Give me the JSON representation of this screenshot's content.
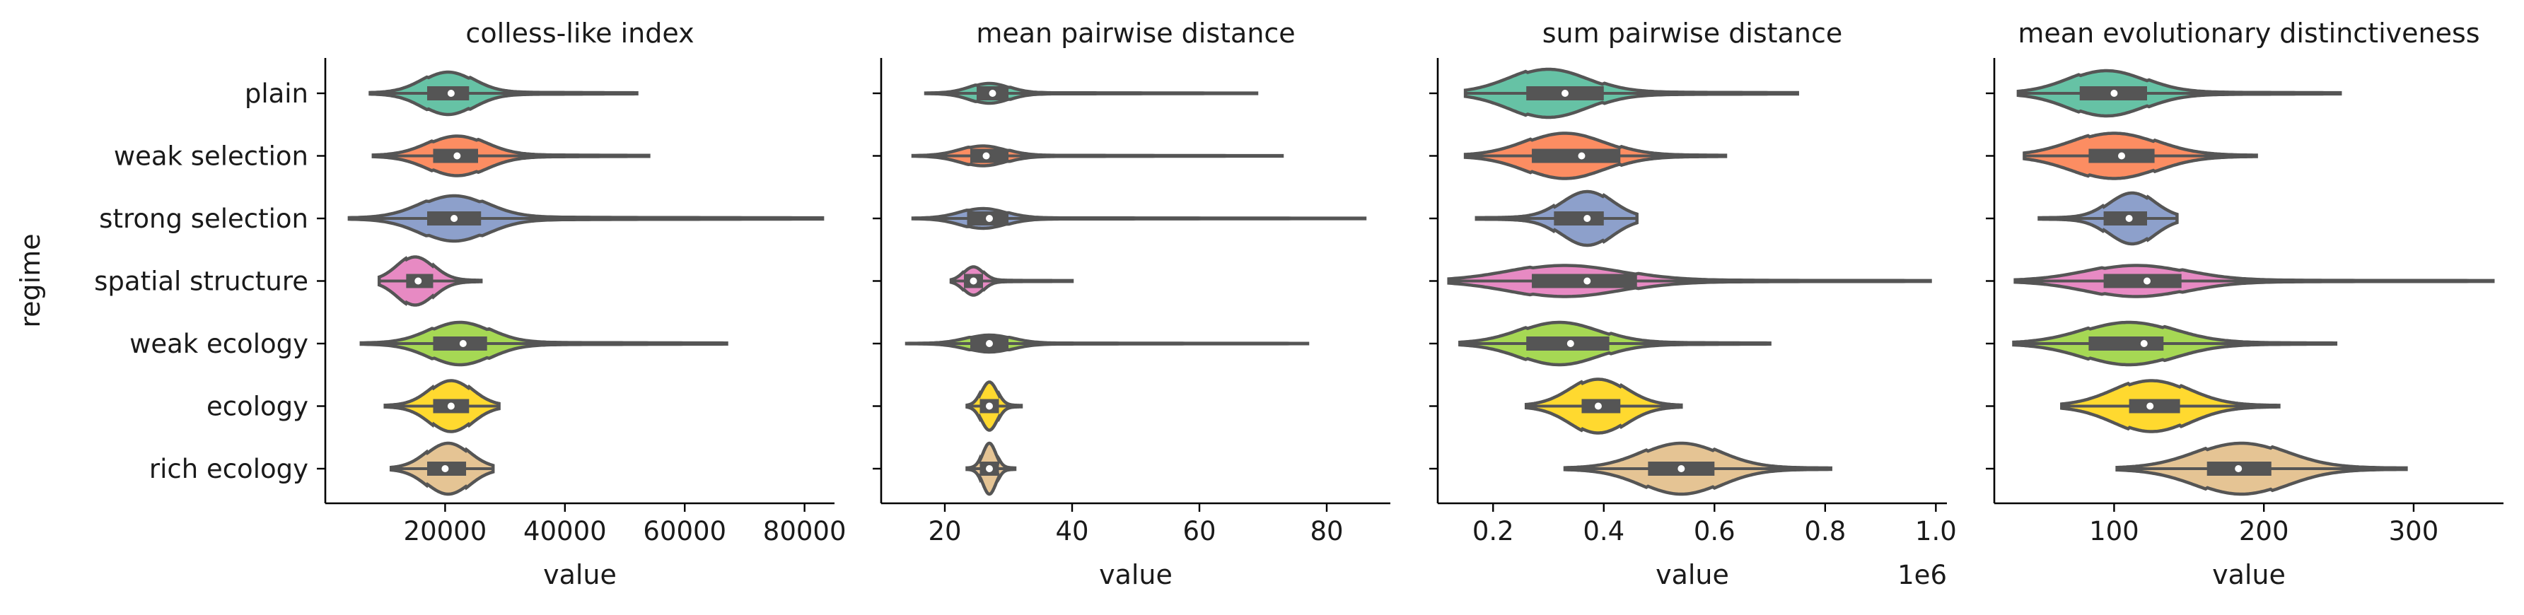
{
  "chart_data": {
    "type": "violin",
    "ylabel": "regime",
    "categories": [
      "plain",
      "weak selection",
      "strong selection",
      "spatial structure",
      "weak ecology",
      "ecology",
      "rich ecology"
    ],
    "palette": [
      "#66c2a5",
      "#fc8d62",
      "#8da0cb",
      "#e78ac3",
      "#a6d854",
      "#ffd92f",
      "#e5c494"
    ],
    "panels": [
      {
        "title": "colless-like index",
        "xlabel": "value",
        "xlim": [
          0,
          85000
        ],
        "xticks": [
          20000,
          40000,
          60000,
          80000
        ],
        "tick_labels": [
          "20000",
          "40000",
          "60000",
          "80000"
        ],
        "offset_label": "",
        "series": [
          {
            "name": "plain",
            "min": 7500,
            "q1": 17000,
            "median": 21000,
            "q3": 24000,
            "max": 52000,
            "mode": 20500,
            "spread": 4200,
            "peak": 0.75
          },
          {
            "name": "weak selection",
            "min": 8000,
            "q1": 18000,
            "median": 22000,
            "q3": 25500,
            "max": 54000,
            "mode": 22000,
            "spread": 4800,
            "peak": 0.7
          },
          {
            "name": "strong selection",
            "min": 4000,
            "q1": 17000,
            "median": 21500,
            "q3": 26000,
            "max": 83000,
            "mode": 21500,
            "spread": 5500,
            "peak": 0.8
          },
          {
            "name": "spatial structure",
            "min": 9000,
            "q1": 13500,
            "median": 15500,
            "q3": 18000,
            "max": 26000,
            "mode": 15000,
            "spread": 3000,
            "peak": 0.85
          },
          {
            "name": "weak ecology",
            "min": 6000,
            "q1": 18000,
            "median": 23000,
            "q3": 27000,
            "max": 67000,
            "mode": 22500,
            "spread": 5000,
            "peak": 0.75
          },
          {
            "name": "ecology",
            "min": 10000,
            "q1": 18000,
            "median": 21000,
            "q3": 24000,
            "max": 29000,
            "mode": 21000,
            "spread": 3500,
            "peak": 0.9
          },
          {
            "name": "rich ecology",
            "min": 11000,
            "q1": 17000,
            "median": 20000,
            "q3": 23500,
            "max": 28000,
            "mode": 20500,
            "spread": 3500,
            "peak": 0.9
          }
        ]
      },
      {
        "title": "mean pairwise distance",
        "xlabel": "value",
        "xlim": [
          10,
          90
        ],
        "xticks": [
          20,
          40,
          60,
          80
        ],
        "tick_labels": [
          "20",
          "40",
          "60",
          "80"
        ],
        "offset_label": "",
        "series": [
          {
            "name": "plain",
            "min": 17,
            "q1": 25,
            "median": 27.5,
            "q3": 30,
            "max": 69,
            "mode": 27,
            "spread": 3,
            "peak": 0.35
          },
          {
            "name": "weak selection",
            "min": 15,
            "q1": 24,
            "median": 26.5,
            "q3": 30,
            "max": 73,
            "mode": 26,
            "spread": 3.5,
            "peak": 0.35
          },
          {
            "name": "strong selection",
            "min": 15,
            "q1": 23.5,
            "median": 27,
            "q3": 30,
            "max": 86,
            "mode": 26,
            "spread": 3.5,
            "peak": 0.35
          },
          {
            "name": "spatial structure",
            "min": 21,
            "q1": 23,
            "median": 24.5,
            "q3": 26,
            "max": 40,
            "mode": 24.5,
            "spread": 1.5,
            "peak": 0.5
          },
          {
            "name": "weak ecology",
            "min": 14,
            "q1": 24,
            "median": 27,
            "q3": 30,
            "max": 77,
            "mode": 27,
            "spread": 3.5,
            "peak": 0.3
          },
          {
            "name": "ecology",
            "min": 23.5,
            "q1": 25.5,
            "median": 27,
            "q3": 28.5,
            "max": 32,
            "mode": 27,
            "spread": 1.2,
            "peak": 0.85
          },
          {
            "name": "rich ecology",
            "min": 23.5,
            "q1": 25.5,
            "median": 27,
            "q3": 28.5,
            "max": 31,
            "mode": 27,
            "spread": 1.0,
            "peak": 0.9
          }
        ]
      },
      {
        "title": "sum pairwise distance",
        "xlabel": "value",
        "xlim": [
          0.1,
          1.02
        ],
        "xticks": [
          0.2,
          0.4,
          0.6,
          0.8,
          1.0
        ],
        "tick_labels": [
          "0.2",
          "0.4",
          "0.6",
          "0.8",
          "1.0"
        ],
        "offset_label": "1e6",
        "series": [
          {
            "name": "plain",
            "min": 0.15,
            "q1": 0.26,
            "median": 0.33,
            "q3": 0.4,
            "max": 0.75,
            "mode": 0.3,
            "spread": 0.07,
            "peak": 0.85
          },
          {
            "name": "weak selection",
            "min": 0.15,
            "q1": 0.27,
            "median": 0.36,
            "q3": 0.43,
            "max": 0.62,
            "mode": 0.33,
            "spread": 0.07,
            "peak": 0.8
          },
          {
            "name": "strong selection",
            "min": 0.17,
            "q1": 0.31,
            "median": 0.37,
            "q3": 0.4,
            "max": 0.46,
            "mode": 0.37,
            "spread": 0.045,
            "peak": 0.95
          },
          {
            "name": "spatial structure",
            "min": 0.12,
            "q1": 0.27,
            "median": 0.37,
            "q3": 0.46,
            "max": 0.99,
            "mode": 0.33,
            "spread": 0.1,
            "peak": 0.55
          },
          {
            "name": "weak ecology",
            "min": 0.14,
            "q1": 0.26,
            "median": 0.34,
            "q3": 0.41,
            "max": 0.7,
            "mode": 0.32,
            "spread": 0.07,
            "peak": 0.75
          },
          {
            "name": "ecology",
            "min": 0.26,
            "q1": 0.36,
            "median": 0.39,
            "q3": 0.43,
            "max": 0.54,
            "mode": 0.39,
            "spread": 0.05,
            "peak": 0.95
          },
          {
            "name": "rich ecology",
            "min": 0.33,
            "q1": 0.48,
            "median": 0.54,
            "q3": 0.6,
            "max": 0.81,
            "mode": 0.54,
            "spread": 0.07,
            "peak": 0.9
          }
        ]
      },
      {
        "title": "mean evolutionary distinctiveness",
        "xlabel": "value",
        "xlim": [
          20,
          360
        ],
        "xticks": [
          100,
          200,
          300
        ],
        "tick_labels": [
          "100",
          "200",
          "300"
        ],
        "offset_label": "",
        "series": [
          {
            "name": "plain",
            "min": 36,
            "q1": 77,
            "median": 100,
            "q3": 122,
            "max": 251,
            "mode": 95,
            "spread": 25,
            "peak": 0.8
          },
          {
            "name": "weak selection",
            "min": 40,
            "q1": 83,
            "median": 105,
            "q3": 127,
            "max": 195,
            "mode": 100,
            "spread": 28,
            "peak": 0.8
          },
          {
            "name": "strong selection",
            "min": 50,
            "q1": 93,
            "median": 110,
            "q3": 122,
            "max": 142,
            "mode": 112,
            "spread": 15,
            "peak": 0.9
          },
          {
            "name": "spatial structure",
            "min": 34,
            "q1": 93,
            "median": 122,
            "q3": 145,
            "max": 353,
            "mode": 115,
            "spread": 33,
            "peak": 0.55
          },
          {
            "name": "weak ecology",
            "min": 33,
            "q1": 83,
            "median": 120,
            "q3": 133,
            "max": 248,
            "mode": 110,
            "spread": 30,
            "peak": 0.75
          },
          {
            "name": "ecology",
            "min": 65,
            "q1": 110,
            "median": 124,
            "q3": 144,
            "max": 210,
            "mode": 125,
            "spread": 25,
            "peak": 0.9
          },
          {
            "name": "rich ecology",
            "min": 102,
            "q1": 162,
            "median": 183,
            "q3": 205,
            "max": 295,
            "mode": 185,
            "spread": 30,
            "peak": 0.9
          }
        ]
      }
    ]
  }
}
